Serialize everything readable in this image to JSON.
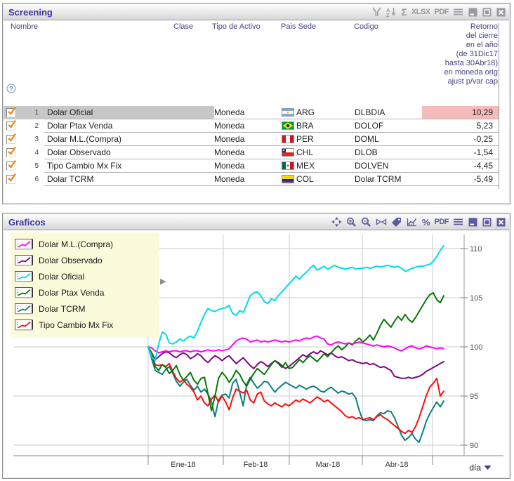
{
  "screening": {
    "title": "Screening",
    "toolbar": [
      {
        "name": "filter-icon"
      },
      {
        "name": "sort-az-icon"
      },
      {
        "name": "sum-icon",
        "glyph": "Σ"
      },
      {
        "name": "xlsx-button",
        "glyph": "XLSX"
      },
      {
        "name": "pdf-button",
        "glyph": "PDF"
      },
      {
        "name": "menu-icon"
      },
      {
        "name": "minimize-icon",
        "win": true
      },
      {
        "name": "maximize-icon",
        "win": true
      },
      {
        "name": "close-icon",
        "win": true
      }
    ],
    "columns": {
      "nombre": "Nombre",
      "clase": "Clase",
      "tipo": "Tipo de Activo",
      "pais": "Pais Sede",
      "codigo": "Codigo"
    },
    "return_header_lines": [
      "Retorno",
      "del cierre",
      "en el año",
      "(de 31Dic17",
      "hasta 30Abr18)",
      "en moneda orig",
      "ajust p/var cap"
    ],
    "rows": [
      {
        "num": "1",
        "nombre": "Dolar Oficial",
        "clase": "",
        "tipo": "Moneda",
        "flag": "ARG",
        "pais": "ARG",
        "codigo": "DLBDIA",
        "retorno": "10,29",
        "selected": true,
        "retorno_highlight": true
      },
      {
        "num": "2",
        "nombre": "Dolar Ptax Venda",
        "clase": "",
        "tipo": "Moneda",
        "flag": "BRA",
        "pais": "BRA",
        "codigo": "DOLOF",
        "retorno": "5,23",
        "selected": false,
        "retorno_highlight": false
      },
      {
        "num": "3",
        "nombre": "Dolar M.L.(Compra)",
        "clase": "",
        "tipo": "Moneda",
        "flag": "PER",
        "pais": "PER",
        "codigo": "DOML",
        "retorno": "-0,25",
        "selected": false,
        "retorno_highlight": false
      },
      {
        "num": "4",
        "nombre": "Dolar Observado",
        "clase": "",
        "tipo": "Moneda",
        "flag": "CHL",
        "pais": "CHL",
        "codigo": "DLOB",
        "retorno": "-1,54",
        "selected": false,
        "retorno_highlight": false
      },
      {
        "num": "5",
        "nombre": "Tipo Cambio Mx Fix",
        "clase": "",
        "tipo": "Moneda",
        "flag": "MEX",
        "pais": "MEX",
        "codigo": "DOLVEN",
        "retorno": "-4,45",
        "selected": false,
        "retorno_highlight": false
      },
      {
        "num": "6",
        "nombre": "Dolar TCRM",
        "clase": "",
        "tipo": "Moneda",
        "flag": "COL",
        "pais": "COL",
        "codigo": "Dolar TCRM",
        "retorno": "-5,49",
        "selected": false,
        "retorno_highlight": false
      }
    ],
    "highlight_color": "#f5baba",
    "selected_row_color": "#c7c7c7"
  },
  "graficos": {
    "title": "Graficos",
    "toolbar": [
      {
        "name": "expand-icon"
      },
      {
        "name": "zoom-in-icon"
      },
      {
        "name": "zoom-out-icon"
      },
      {
        "name": "compare-icon"
      },
      {
        "name": "tag-icon"
      },
      {
        "name": "chart-icon"
      },
      {
        "name": "percent-icon",
        "glyph": "%"
      },
      {
        "name": "pdf-button",
        "glyph": "PDF"
      },
      {
        "name": "menu-icon"
      },
      {
        "name": "minimize-icon",
        "win": true
      },
      {
        "name": "maximize-icon",
        "win": true
      },
      {
        "name": "close-icon",
        "win": true
      }
    ],
    "x_axis_unit": "día",
    "legend_background": "#fbfbdc"
  },
  "chart_data": {
    "type": "line",
    "title": "Graficos",
    "x_tick_labels": [
      "Ene-18",
      "Feb-18",
      "Mar-18",
      "Abr-18"
    ],
    "x_unit": "día",
    "y_ticks": [
      90,
      95,
      100,
      105,
      110
    ],
    "ylim": [
      89,
      111.5
    ],
    "grid": true,
    "legend_position": "top-left",
    "base_value": 100,
    "series": [
      {
        "name": "Dolar M.L.(Compra)",
        "color": "#ff00ff",
        "values": [
          100,
          99.9,
          99.6,
          99.4,
          99.5,
          99.6,
          99.5,
          99.6,
          99.6,
          99.5,
          99.6,
          99.6,
          99.5,
          99.6,
          99.6,
          99.5,
          99.6,
          99.7,
          99.6,
          99.6,
          99.7,
          99.6,
          99.7,
          99.8,
          100.2,
          100.6,
          100.8,
          100.9,
          100.8,
          100.5,
          100.6,
          100.7,
          100.5,
          100.6,
          100.5,
          100.6,
          100.7,
          100.6,
          100.5,
          100.6,
          100.5,
          100.6,
          100.7,
          100.6,
          100.8,
          100.9,
          100.8,
          101.0,
          101.1,
          100.9,
          100.8,
          100.3,
          100.2,
          100.4,
          100.5,
          100.4,
          100.3,
          100.4,
          100.3,
          100.4,
          100.5,
          100.4,
          100.3,
          100.2,
          100.1,
          100.2,
          100.1,
          100.0,
          100.1,
          100.0,
          99.9,
          99.7,
          99.6,
          99.8,
          100.0,
          100.1,
          99.9,
          99.8,
          99.9,
          100.1,
          100.0,
          99.9,
          99.8,
          99.9,
          99.8
        ]
      },
      {
        "name": "Dolar Observado",
        "color": "#7b0880",
        "values": [
          100,
          99.4,
          98.7,
          99.0,
          99.3,
          99.5,
          99.4,
          99.1,
          98.9,
          99.2,
          99.4,
          99.2,
          98.8,
          99.0,
          99.3,
          99.1,
          98.7,
          98.4,
          98.8,
          99.1,
          98.9,
          98.6,
          98.9,
          99.1,
          98.7,
          98.3,
          98.6,
          98.9,
          98.5,
          98.1,
          97.8,
          98.2,
          98.5,
          98.3,
          98.0,
          98.3,
          98.6,
          98.4,
          98.1,
          97.8,
          98.0,
          98.3,
          98.6,
          98.9,
          99.2,
          99.0,
          99.3,
          99.5,
          99.3,
          99.6,
          99.4,
          99.2,
          99.4,
          99.1,
          98.9,
          99.0,
          98.8,
          98.6,
          98.7,
          98.5,
          98.4,
          98.3,
          98.4,
          98.2,
          98.3,
          98.1,
          97.9,
          98.0,
          97.8,
          97.6,
          97.0,
          96.9,
          96.8,
          96.8,
          96.9,
          96.8,
          96.9,
          97.0,
          97.2,
          97.5,
          97.7,
          97.9,
          98.1,
          98.3,
          98.5
        ]
      },
      {
        "name": "Dolar Oficial",
        "color": "#00dce8",
        "values": [
          100,
          99.0,
          98.6,
          100.3,
          101.5,
          101.3,
          100.4,
          100.3,
          100.5,
          100.8,
          100.6,
          100.9,
          101.1,
          100.9,
          101.6,
          102.5,
          103.3,
          103.9,
          103.7,
          103.6,
          103.8,
          103.9,
          104.0,
          104.2,
          103.4,
          103.2,
          103.7,
          103.5,
          104.3,
          105.2,
          105.5,
          105.6,
          105.2,
          104.6,
          104.4,
          104.9,
          104.7,
          105.2,
          105.6,
          106.0,
          106.4,
          106.8,
          107.2,
          106.9,
          107.3,
          107.6,
          108.0,
          108.3,
          107.8,
          108.0,
          108.2,
          107.9,
          108.1,
          108.3,
          108.1,
          108.0,
          107.9,
          108.0,
          108.1,
          107.9,
          108.0,
          108.0,
          108.1,
          108.0,
          108.1,
          108.2,
          108.1,
          108.2,
          108.3,
          108.2,
          108.1,
          108.2,
          108.0,
          107.7,
          107.8,
          108.0,
          108.1,
          108.2,
          108.2,
          108.3,
          108.4,
          108.7,
          109.2,
          109.8,
          110.3
        ]
      },
      {
        "name": "Dolar Ptax Venda",
        "color": "#077807",
        "values": [
          100,
          99.4,
          98.0,
          97.6,
          98.2,
          97.9,
          97.3,
          97.6,
          98.1,
          97.2,
          96.6,
          97.0,
          97.4,
          96.6,
          96.2,
          96.8,
          96.9,
          95.2,
          93.5,
          95.0,
          96.8,
          97.4,
          97.0,
          96.4,
          96.9,
          97.6,
          97.2,
          96.5,
          96.0,
          96.7,
          97.3,
          97.8,
          97.5,
          97.2,
          97.7,
          98.2,
          98.6,
          98.3,
          97.9,
          98.4,
          97.8,
          97.9,
          98.3,
          98.7,
          98.4,
          98.8,
          99.1,
          98.8,
          98.5,
          98.9,
          99.3,
          99.0,
          99.4,
          99.8,
          100.1,
          99.7,
          100.0,
          100.4,
          100.2,
          100.6,
          100.9,
          100.5,
          100.8,
          101.2,
          100.7,
          101.4,
          102.2,
          102.8,
          102.4,
          102.0,
          102.6,
          103.1,
          102.7,
          103.3,
          102.8,
          102.5,
          103.0,
          103.6,
          104.2,
          104.8,
          105.3,
          105.5,
          104.8,
          104.5,
          105.2
        ]
      },
      {
        "name": "Dolar TCRM",
        "color": "#0a7f80",
        "values": [
          100,
          98.8,
          97.6,
          97.4,
          97.2,
          97.7,
          98.0,
          97.3,
          96.5,
          96.0,
          96.4,
          96.7,
          96.1,
          95.6,
          96.0,
          95.4,
          95.7,
          95.2,
          94.4,
          92.9,
          94.6,
          95.1,
          95.2,
          94.8,
          96.3,
          96.7,
          95.4,
          94.0,
          96.2,
          96.9,
          96.3,
          95.8,
          96.1,
          96.5,
          96.4,
          95.9,
          95.4,
          95.8,
          96.1,
          96.4,
          96.2,
          96.0,
          95.8,
          96.1,
          95.9,
          95.7,
          95.9,
          96.0,
          95.8,
          95.5,
          95.4,
          95.7,
          95.9,
          95.6,
          95.3,
          95.5,
          95.4,
          95.2,
          95.3,
          94.8,
          93.5,
          92.6,
          92.5,
          92.6,
          92.5,
          93.0,
          93.3,
          93.2,
          93.5,
          93.4,
          92.8,
          91.9,
          91.0,
          90.5,
          90.8,
          91.2,
          90.6,
          90.3,
          91.3,
          92.4,
          93.2,
          93.8,
          94.4,
          93.9,
          94.5
        ]
      },
      {
        "name": "Tipo Cambio Mx Fix",
        "color": "#fd0d0d",
        "values": [
          100,
          99.2,
          98.2,
          98.1,
          98.2,
          98.0,
          98.3,
          97.5,
          96.8,
          96.4,
          96.7,
          96.2,
          95.9,
          95.4,
          94.6,
          95.0,
          94.3,
          94.0,
          94.7,
          95.1,
          94.4,
          95.0,
          94.4,
          93.6,
          94.8,
          95.7,
          95.5,
          95.3,
          95.6,
          94.6,
          94.3,
          95.2,
          95.4,
          94.5,
          94.2,
          94.0,
          94.3,
          94.1,
          93.9,
          94.2,
          94.0,
          94.3,
          94.6,
          94.4,
          94.7,
          94.5,
          94.3,
          94.6,
          94.9,
          94.7,
          94.4,
          94.6,
          94.3,
          94.0,
          93.7,
          93.4,
          93.0,
          92.8,
          92.9,
          92.7,
          92.8,
          92.6,
          92.7,
          92.8,
          92.6,
          92.9,
          93.1,
          92.8,
          92.6,
          92.3,
          92.0,
          91.7,
          91.4,
          91.2,
          91.5,
          91.3,
          91.9,
          92.8,
          93.9,
          95.0,
          95.9,
          96.3,
          96.8,
          95.0,
          95.5
        ]
      }
    ]
  }
}
